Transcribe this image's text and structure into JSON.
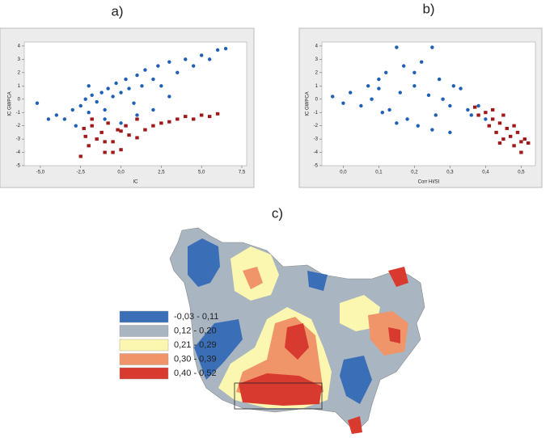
{
  "chart_data": [
    {
      "type": "scatter",
      "title": "a)",
      "xlabel": "IC",
      "ylabel": "IC GWPCA",
      "xlim": [
        -6,
        7.8
      ],
      "ylim": [
        -5,
        4.3
      ],
      "xticks": [
        {
          "value": -5,
          "label": "-5,0"
        },
        {
          "value": -2.5,
          "label": "-2,5"
        },
        {
          "value": 0,
          "label": "0,0"
        },
        {
          "value": 2.5,
          "label": "2,5"
        },
        {
          "value": 5,
          "label": "5,0"
        },
        {
          "value": 7.5,
          "label": "7,5"
        }
      ],
      "yticks": [
        -5,
        -4,
        -3,
        -2,
        -1,
        0,
        1,
        2,
        3,
        4
      ],
      "series": [
        {
          "color": "#1f5fb4",
          "x": [
            -5.2,
            -4.5,
            -4,
            -3.5,
            -3,
            -2.8,
            -2.5,
            -2.2,
            -2,
            -1.8,
            -1.5,
            -1.2,
            -1,
            -0.8,
            -0.5,
            -0.3,
            0,
            0.3,
            0.5,
            0.8,
            1,
            1.3,
            1.5,
            2,
            2.3,
            2.5,
            3,
            3.5,
            4,
            4.5,
            5,
            5.5,
            6,
            6.5,
            -1,
            0,
            1,
            2,
            -2,
            3
          ],
          "values": [
            -0.3,
            -1.5,
            -1.2,
            -1.5,
            -0.8,
            -2,
            -0.5,
            0,
            -1,
            0.3,
            -0.2,
            0.5,
            -0.8,
            0.8,
            0.2,
            1.2,
            0.5,
            1.5,
            0.8,
            -0.3,
            1.8,
            1,
            2.2,
            1.5,
            2.5,
            1,
            2.8,
            2,
            3,
            2.5,
            3.3,
            3,
            3.7,
            3.8,
            -1.5,
            -1.8,
            -1.2,
            -0.8,
            1,
            0.2
          ]
        },
        {
          "color": "#a01818",
          "x": [
            -2.5,
            -2.3,
            -2,
            -1.8,
            -1.5,
            -1.2,
            -1,
            -0.8,
            -0.5,
            -0.2,
            0,
            0.3,
            0.5,
            1,
            1.5,
            2,
            2.5,
            3,
            3.5,
            4,
            4.5,
            5,
            5.5,
            6,
            -2.2,
            -1,
            0,
            1,
            -0.5,
            -1.8
          ],
          "values": [
            -4.3,
            -2.2,
            -3.5,
            -1.5,
            -3,
            -2.5,
            -4,
            -1.8,
            -3.2,
            -2.3,
            -3.8,
            -2,
            -2.7,
            -1.5,
            -2.3,
            -2,
            -1.8,
            -1.7,
            -1.5,
            -1.3,
            -1.5,
            -1.2,
            -1.3,
            -1.1,
            -2.8,
            -3.2,
            -2.4,
            -2.9,
            -4,
            -2
          ]
        }
      ]
    },
    {
      "type": "scatter",
      "title": "b)",
      "xlabel": "Corr HI/SI",
      "ylabel": "IC GWPCA",
      "xlim": [
        -0.06,
        0.54
      ],
      "ylim": [
        -5,
        4.3
      ],
      "xticks": [
        {
          "value": 0,
          "label": "0,0"
        },
        {
          "value": 0.1,
          "label": "0,1"
        },
        {
          "value": 0.2,
          "label": "0,2"
        },
        {
          "value": 0.3,
          "label": "0,3"
        },
        {
          "value": 0.4,
          "label": "0,4"
        },
        {
          "value": 0.5,
          "label": "0,5"
        }
      ],
      "yticks": [
        -5,
        -4,
        -3,
        -2,
        -1,
        0,
        1,
        2,
        3,
        4
      ],
      "series": [
        {
          "color": "#1f5fb4",
          "x": [
            -0.03,
            0,
            0.02,
            0.05,
            0.07,
            0.08,
            0.1,
            0.11,
            0.12,
            0.13,
            0.15,
            0.16,
            0.17,
            0.18,
            0.2,
            0.21,
            0.22,
            0.24,
            0.25,
            0.26,
            0.27,
            0.28,
            0.3,
            0.31,
            0.33,
            0.35,
            0.36,
            0.38,
            0.4,
            0.15,
            0.2,
            0.25,
            0.1,
            0.3
          ],
          "values": [
            0.2,
            -0.3,
            0.5,
            -0.5,
            1,
            0,
            1.5,
            -1,
            2,
            -0.8,
            3.9,
            0.5,
            2.5,
            -1.5,
            1,
            -2,
            2.8,
            0.3,
            3.9,
            -1.2,
            1.5,
            0,
            -0.5,
            1,
            0.8,
            -0.8,
            -1.2,
            -0.5,
            -1.5,
            -1.8,
            2,
            -2.3,
            0.8,
            -2.5
          ]
        },
        {
          "color": "#a01818",
          "x": [
            0.37,
            0.38,
            0.4,
            0.41,
            0.42,
            0.43,
            0.44,
            0.45,
            0.46,
            0.47,
            0.48,
            0.49,
            0.5,
            0.51,
            0.52,
            0.42,
            0.45,
            0.48,
            0.5,
            0.44
          ],
          "values": [
            -0.6,
            -1.2,
            -1,
            -2,
            -1.5,
            -2.5,
            -1.8,
            -3,
            -2.2,
            -2.8,
            -3.5,
            -2.5,
            -3.2,
            -3,
            -3.3,
            -0.8,
            -1.2,
            -2,
            -4,
            -3.3
          ]
        }
      ]
    },
    {
      "type": "map",
      "title": "c)",
      "legend": [
        {
          "label": "-0,03 - 0,11",
          "color": "#3a6fb8"
        },
        {
          "label": "0,12 - 0,20",
          "color": "#a9b5c1"
        },
        {
          "label": "0,21 - 0,29",
          "color": "#fbf6b0"
        },
        {
          "label": "0,30 - 0,39",
          "color": "#f0956a"
        },
        {
          "label": "0,40 - 0,52",
          "color": "#d83a2f"
        }
      ]
    }
  ]
}
